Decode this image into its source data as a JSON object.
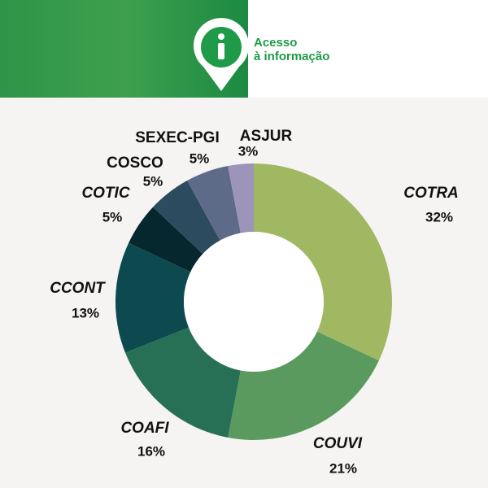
{
  "header": {
    "line1": "Acesso",
    "line2": "à informação"
  },
  "chart_data": {
    "type": "donut",
    "categories": [
      "COTRA",
      "COUVI",
      "COAFI",
      "CCONT",
      "COTIC",
      "COSCO",
      "SEXEC-PGI",
      "ASJUR"
    ],
    "values": [
      32,
      21,
      16,
      13,
      5,
      5,
      5,
      3
    ],
    "value_labels": [
      "32%",
      "21%",
      "16%",
      "13%",
      "5%",
      "5%",
      "5%",
      "3%"
    ],
    "colors": [
      "#a1b862",
      "#5a9a5f",
      "#277056",
      "#0d4a4f",
      "#07272f",
      "#2c4b5e",
      "#5d6b89",
      "#9c94b9"
    ]
  }
}
